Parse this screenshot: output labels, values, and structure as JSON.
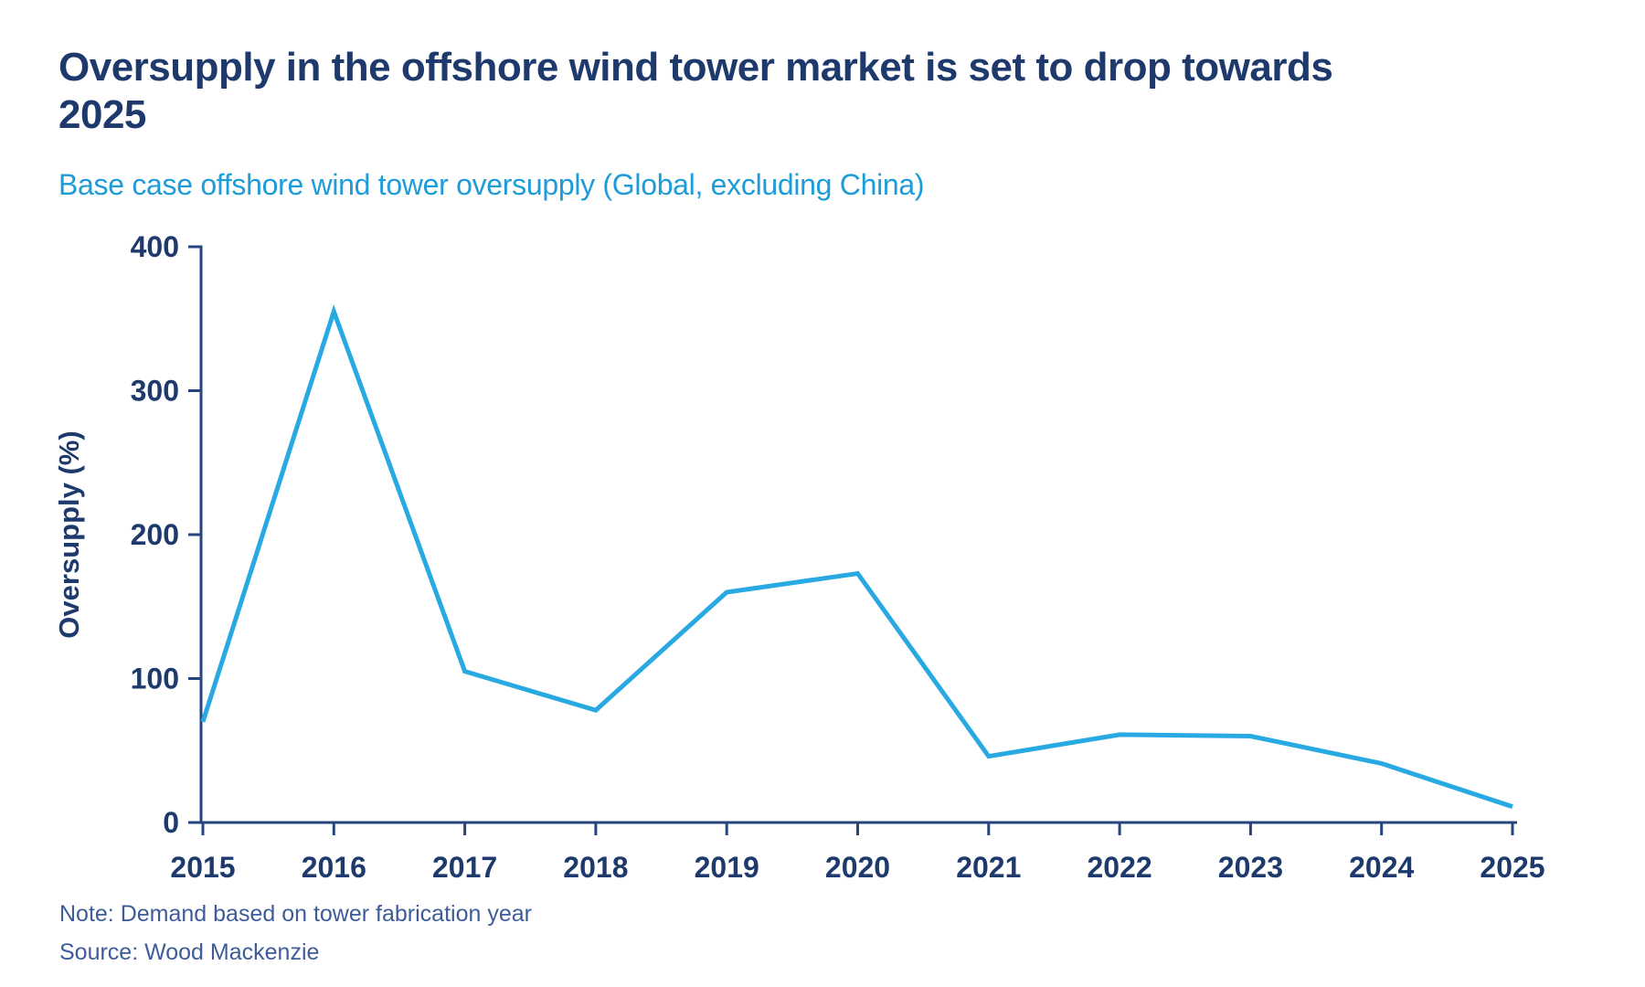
{
  "header": {
    "title": "Oversupply in the offshore wind tower market is set to drop towards\n2025",
    "subtitle": "Base case offshore wind tower oversupply (Global, excluding China)"
  },
  "footer": {
    "note": "Note: Demand based on tower fabrication year",
    "source": "Source: Wood Mackenzie"
  },
  "colors": {
    "title_navy": "#1E3A6D",
    "axis_navy": "#27457D",
    "subtitle_blue": "#1E9CD7",
    "line_blue": "#29A9E2",
    "note_blue": "#3E5C99"
  },
  "chart_data": {
    "type": "line",
    "title": "Oversupply in the offshore wind tower market is set to drop towards 2025",
    "subtitle": "Base case offshore wind tower oversupply (Global, excluding China)",
    "categories": [
      2015,
      2016,
      2017,
      2018,
      2019,
      2020,
      2021,
      2022,
      2023,
      2024,
      2025
    ],
    "series": [
      {
        "name": "Base case offshore wind tower oversupply",
        "values": [
          70,
          355,
          105,
          78,
          160,
          173,
          46,
          61,
          60,
          41,
          11
        ]
      }
    ],
    "xlabel": "",
    "ylabel": "Oversupply (%)",
    "ylim": [
      0,
      400
    ],
    "yticks": [
      0,
      100,
      200,
      300,
      400
    ],
    "grid": false,
    "legend_position": "none"
  }
}
